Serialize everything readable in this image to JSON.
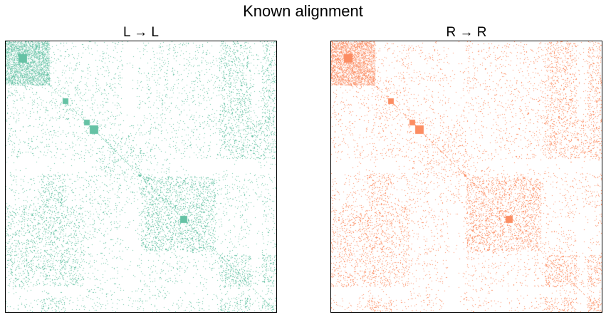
{
  "figure": {
    "suptitle": "Known alignment"
  },
  "chart_data": [
    {
      "type": "heatmap",
      "subtype": "adjacency-spy-plot",
      "title": "L → L",
      "color": "#66c2a5",
      "axes_visible": false,
      "grid": false,
      "block_boundaries": [
        0,
        18,
        30,
        32,
        62,
        80,
        88,
        110,
        118,
        130,
        152,
        187,
        190,
        210,
        230,
        245,
        255,
        295,
        330,
        380
      ],
      "dense_blocks": [
        {
          "rows": [
            0,
            62
          ],
          "cols": [
            0,
            62
          ],
          "density": 0.6
        },
        {
          "rows": [
            62,
            110
          ],
          "cols": [
            62,
            110
          ],
          "density": 0.2
        },
        {
          "rows": [
            110,
            130
          ],
          "cols": [
            110,
            130
          ],
          "density": 0.3
        },
        {
          "rows": [
            130,
            190
          ],
          "cols": [
            130,
            190
          ],
          "density": 0.2
        },
        {
          "rows": [
            190,
            295
          ],
          "cols": [
            190,
            295
          ],
          "density": 0.45
        },
        {
          "rows": [
            300,
            380
          ],
          "cols": [
            300,
            380
          ],
          "density": 0.4
        }
      ]
    },
    {
      "type": "heatmap",
      "subtype": "adjacency-spy-plot",
      "title": "R → R",
      "color": "#fc8d62",
      "axes_visible": false,
      "grid": false,
      "block_boundaries": [
        0,
        18,
        30,
        32,
        62,
        80,
        88,
        110,
        118,
        130,
        152,
        187,
        190,
        210,
        230,
        245,
        255,
        295,
        330,
        380
      ],
      "dense_blocks": [
        {
          "rows": [
            0,
            62
          ],
          "cols": [
            0,
            62
          ],
          "density": 0.65
        },
        {
          "rows": [
            62,
            110
          ],
          "cols": [
            62,
            110
          ],
          "density": 0.2
        },
        {
          "rows": [
            110,
            130
          ],
          "cols": [
            110,
            130
          ],
          "density": 0.3
        },
        {
          "rows": [
            130,
            190
          ],
          "cols": [
            130,
            190
          ],
          "density": 0.2
        },
        {
          "rows": [
            190,
            295
          ],
          "cols": [
            190,
            295
          ],
          "density": 0.45
        },
        {
          "rows": [
            300,
            380
          ],
          "cols": [
            300,
            380
          ],
          "density": 0.4
        }
      ]
    }
  ]
}
